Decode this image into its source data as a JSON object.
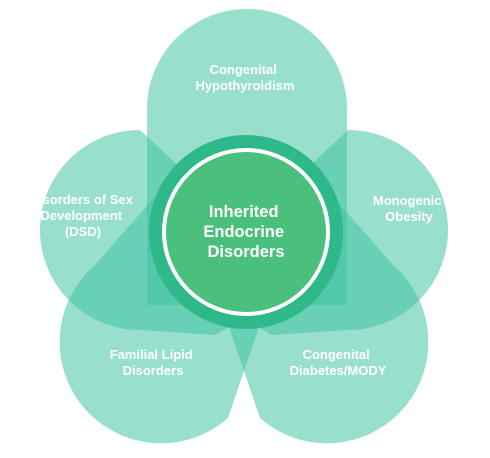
{
  "colors": {
    "petal": "#3cc2a0",
    "center_ring": "#2fb98a",
    "center_fill": "#4bc07c",
    "center_border": "#ffffff",
    "text": "#ffffff"
  },
  "center": {
    "lines": [
      "Inherited",
      "Endocrine",
      "Disorders"
    ]
  },
  "petals": [
    {
      "id": "top",
      "lines": [
        "Congenital",
        "Hypothyroidism"
      ]
    },
    {
      "id": "left",
      "lines": [
        "Disorders of Sex",
        "Development",
        "(DSD)"
      ]
    },
    {
      "id": "right",
      "lines": [
        "Monogenic",
        "Obesity"
      ]
    },
    {
      "id": "bottom-left",
      "lines": [
        "Familial Lipid",
        "Disorders"
      ]
    },
    {
      "id": "bottom-right",
      "lines": [
        "Congenital",
        "Diabetes/MODY"
      ]
    }
  ]
}
